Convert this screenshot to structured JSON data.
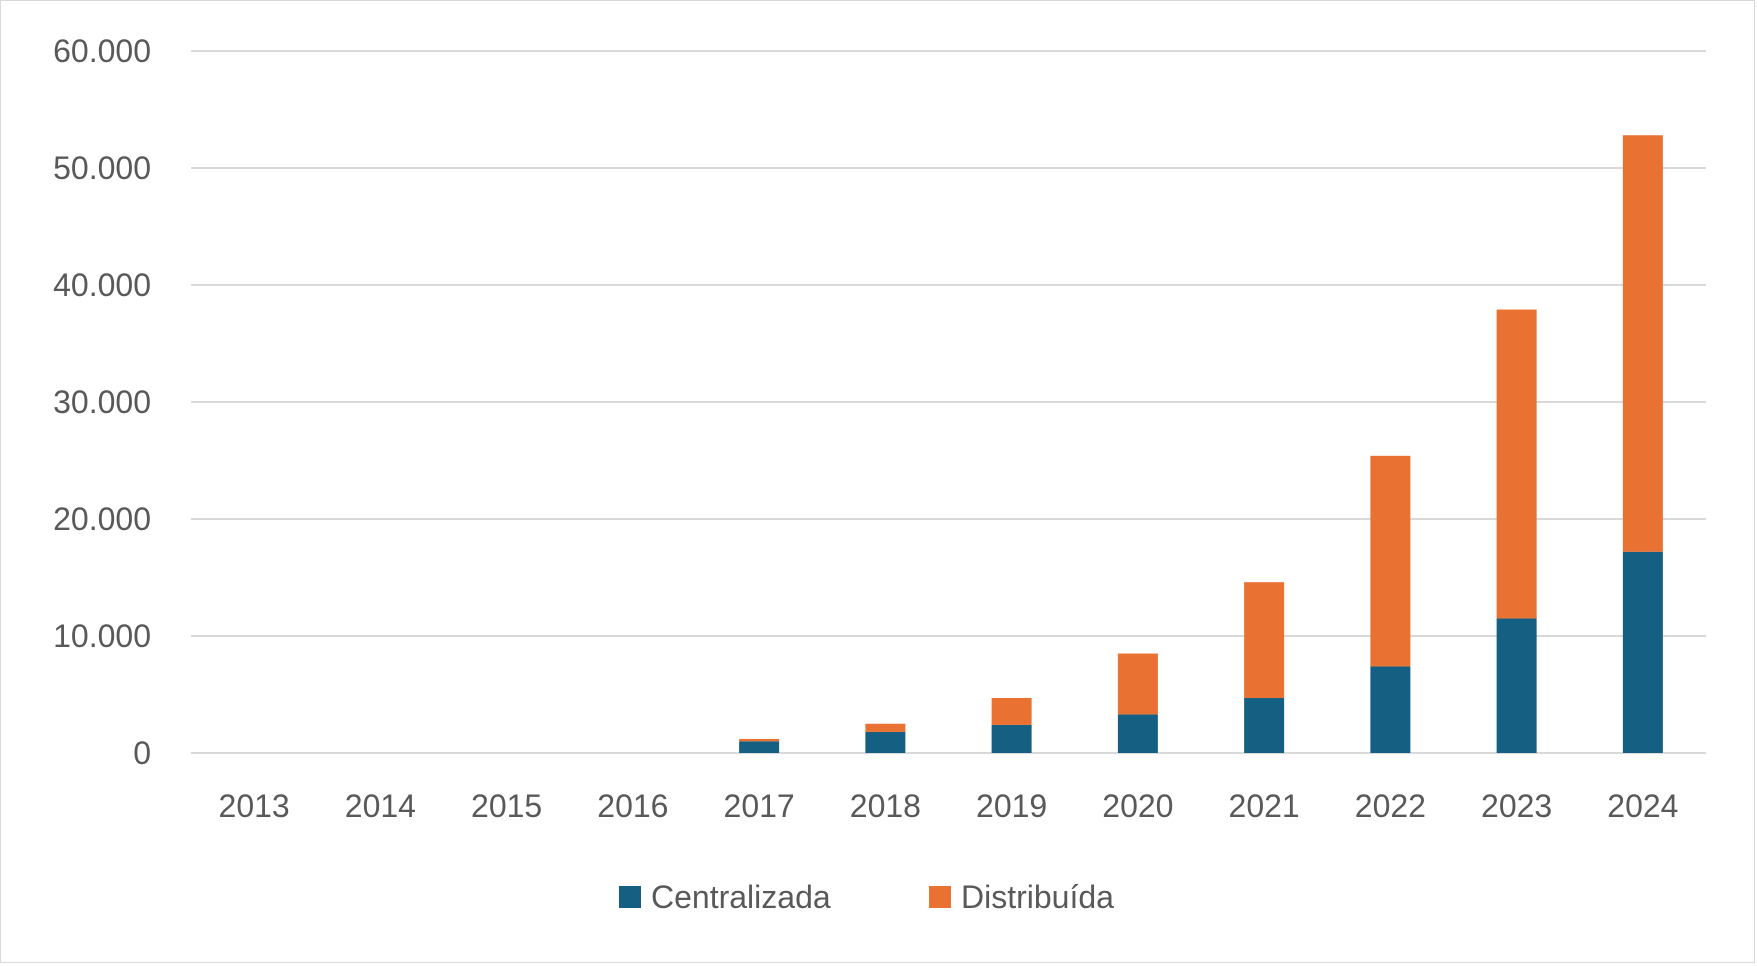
{
  "chart_data": {
    "type": "bar",
    "stacked": true,
    "categories": [
      "2013",
      "2014",
      "2015",
      "2016",
      "2017",
      "2018",
      "2019",
      "2020",
      "2021",
      "2022",
      "2023",
      "2024"
    ],
    "series": [
      {
        "name": "Centralizada",
        "color": "#156082",
        "values": [
          0,
          0,
          0,
          0,
          1000,
          1800,
          2400,
          3300,
          4700,
          7400,
          11500,
          17200
        ]
      },
      {
        "name": "Distribuída",
        "color": "#E97132",
        "values": [
          0,
          0,
          0,
          0,
          200,
          700,
          2300,
          5200,
          9900,
          18000,
          26400,
          35600
        ]
      }
    ],
    "ylim": [
      0,
      60000
    ],
    "yticks": [
      0,
      10000,
      20000,
      30000,
      40000,
      50000,
      60000
    ],
    "ytick_labels": [
      "0",
      "10.000",
      "20.000",
      "30.000",
      "40.000",
      "50.000",
      "60.000"
    ],
    "grid": true,
    "legend_position": "bottom"
  }
}
